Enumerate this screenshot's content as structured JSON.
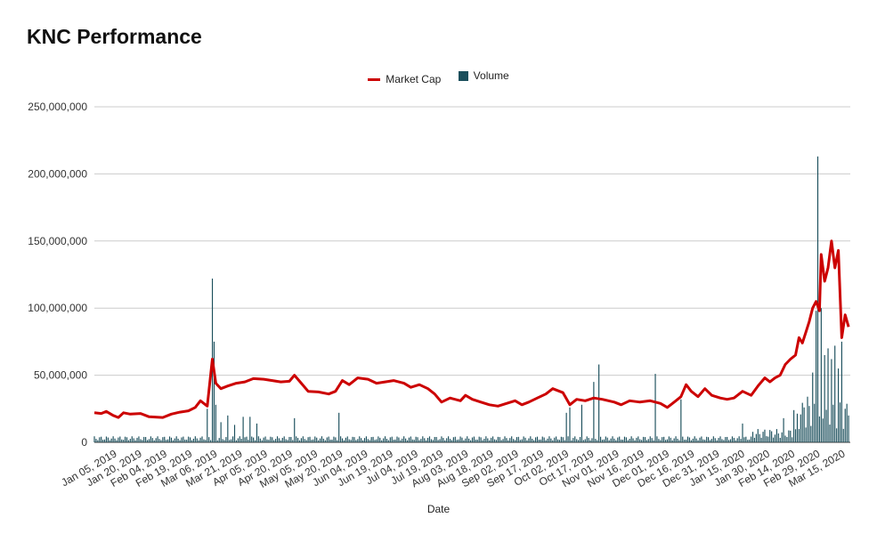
{
  "chart_data": {
    "type": "line+bar",
    "title": "KNC Performance",
    "xlabel": "Date",
    "ylabel": "",
    "ylim": [
      0,
      250000000
    ],
    "y_ticks": [
      0,
      50000000,
      100000000,
      150000000,
      200000000,
      250000000
    ],
    "y_tick_labels": [
      "0",
      "50,000,000",
      "100,000,000",
      "150,000,000",
      "200,000,000",
      "250,000,000"
    ],
    "x_tick_labels": [
      "Jan 05, 2019",
      "Jan 20, 2019",
      "Feb 04, 2019",
      "Feb 19, 2019",
      "Mar 06, 2019",
      "Mar 21, 2019",
      "Apr 05, 2019",
      "Apr 20, 2019",
      "May 05, 2019",
      "May 20, 2019",
      "Jun 04, 2019",
      "Jun 19, 2019",
      "Jul 04, 2019",
      "Jul 19, 2019",
      "Aug 03, 2019",
      "Aug 18, 2019",
      "Sep 02, 2019",
      "Sep 17, 2019",
      "Oct 02, 2019",
      "Oct 17, 2019",
      "Nov 01, 2019",
      "Nov 16, 2019",
      "Dec 01, 2019",
      "Dec 16, 2019",
      "Dec 31, 2019",
      "Jan 15, 2020",
      "Jan 30, 2020",
      "Feb 14, 2020",
      "Feb 29, 2020",
      "Mar 15, 2020"
    ],
    "grid": true,
    "legend_position": "top-center",
    "series": [
      {
        "name": "Market Cap",
        "kind": "line",
        "color": "#cc0000",
        "points": [
          [
            "2019-01-01",
            22000000
          ],
          [
            "2019-01-05",
            21500000
          ],
          [
            "2019-01-08",
            23000000
          ],
          [
            "2019-01-12",
            20000000
          ],
          [
            "2019-01-15",
            18500000
          ],
          [
            "2019-01-18",
            22000000
          ],
          [
            "2019-01-22",
            21000000
          ],
          [
            "2019-01-28",
            21500000
          ],
          [
            "2019-02-02",
            19000000
          ],
          [
            "2019-02-10",
            18500000
          ],
          [
            "2019-02-15",
            21000000
          ],
          [
            "2019-02-20",
            22500000
          ],
          [
            "2019-02-25",
            23500000
          ],
          [
            "2019-03-01",
            26000000
          ],
          [
            "2019-03-04",
            31000000
          ],
          [
            "2019-03-08",
            27000000
          ],
          [
            "2019-03-11",
            62000000
          ],
          [
            "2019-03-13",
            44000000
          ],
          [
            "2019-03-16",
            40000000
          ],
          [
            "2019-03-20",
            42000000
          ],
          [
            "2019-03-25",
            44000000
          ],
          [
            "2019-03-30",
            45000000
          ],
          [
            "2019-04-04",
            47500000
          ],
          [
            "2019-04-10",
            47000000
          ],
          [
            "2019-04-15",
            46000000
          ],
          [
            "2019-04-20",
            45000000
          ],
          [
            "2019-04-25",
            45500000
          ],
          [
            "2019-04-28",
            50000000
          ],
          [
            "2019-05-02",
            44000000
          ],
          [
            "2019-05-06",
            38000000
          ],
          [
            "2019-05-12",
            37500000
          ],
          [
            "2019-05-18",
            36000000
          ],
          [
            "2019-05-22",
            38000000
          ],
          [
            "2019-05-26",
            46000000
          ],
          [
            "2019-05-30",
            43000000
          ],
          [
            "2019-06-04",
            48000000
          ],
          [
            "2019-06-10",
            47000000
          ],
          [
            "2019-06-15",
            44000000
          ],
          [
            "2019-06-20",
            45000000
          ],
          [
            "2019-06-25",
            46000000
          ],
          [
            "2019-07-01",
            44000000
          ],
          [
            "2019-07-05",
            41000000
          ],
          [
            "2019-07-10",
            43000000
          ],
          [
            "2019-07-15",
            40000000
          ],
          [
            "2019-07-19",
            36000000
          ],
          [
            "2019-07-23",
            30000000
          ],
          [
            "2019-07-28",
            33000000
          ],
          [
            "2019-08-03",
            31000000
          ],
          [
            "2019-08-06",
            35000000
          ],
          [
            "2019-08-10",
            32000000
          ],
          [
            "2019-08-15",
            30000000
          ],
          [
            "2019-08-20",
            28000000
          ],
          [
            "2019-08-25",
            27000000
          ],
          [
            "2019-08-30",
            29000000
          ],
          [
            "2019-09-04",
            31000000
          ],
          [
            "2019-09-08",
            28000000
          ],
          [
            "2019-09-12",
            30000000
          ],
          [
            "2019-09-17",
            33000000
          ],
          [
            "2019-09-22",
            36000000
          ],
          [
            "2019-09-26",
            40000000
          ],
          [
            "2019-10-02",
            37000000
          ],
          [
            "2019-10-06",
            28000000
          ],
          [
            "2019-10-10",
            32000000
          ],
          [
            "2019-10-15",
            31000000
          ],
          [
            "2019-10-20",
            33000000
          ],
          [
            "2019-10-25",
            32000000
          ],
          [
            "2019-11-01",
            30000000
          ],
          [
            "2019-11-05",
            28000000
          ],
          [
            "2019-11-10",
            31000000
          ],
          [
            "2019-11-16",
            30000000
          ],
          [
            "2019-11-22",
            31000000
          ],
          [
            "2019-11-28",
            29000000
          ],
          [
            "2019-12-02",
            26000000
          ],
          [
            "2019-12-06",
            30000000
          ],
          [
            "2019-12-10",
            34000000
          ],
          [
            "2019-12-13",
            43000000
          ],
          [
            "2019-12-16",
            38000000
          ],
          [
            "2019-12-20",
            34000000
          ],
          [
            "2019-12-24",
            40000000
          ],
          [
            "2019-12-28",
            35000000
          ],
          [
            "2020-01-02",
            33000000
          ],
          [
            "2020-01-06",
            32000000
          ],
          [
            "2020-01-10",
            33000000
          ],
          [
            "2020-01-15",
            38000000
          ],
          [
            "2020-01-20",
            35000000
          ],
          [
            "2020-01-24",
            42000000
          ],
          [
            "2020-01-28",
            48000000
          ],
          [
            "2020-01-31",
            45000000
          ],
          [
            "2020-02-03",
            48000000
          ],
          [
            "2020-02-06",
            50000000
          ],
          [
            "2020-02-09",
            58000000
          ],
          [
            "2020-02-12",
            62000000
          ],
          [
            "2020-02-15",
            65000000
          ],
          [
            "2020-02-17",
            78000000
          ],
          [
            "2020-02-19",
            74000000
          ],
          [
            "2020-02-21",
            82000000
          ],
          [
            "2020-02-23",
            90000000
          ],
          [
            "2020-02-25",
            100000000
          ],
          [
            "2020-02-27",
            105000000
          ],
          [
            "2020-02-29",
            98000000
          ],
          [
            "2020-03-01",
            140000000
          ],
          [
            "2020-03-03",
            120000000
          ],
          [
            "2020-03-05",
            130000000
          ],
          [
            "2020-03-07",
            150000000
          ],
          [
            "2020-03-09",
            130000000
          ],
          [
            "2020-03-11",
            143000000
          ],
          [
            "2020-03-13",
            78000000
          ],
          [
            "2020-03-15",
            95000000
          ],
          [
            "2020-03-17",
            86000000
          ]
        ]
      },
      {
        "name": "Volume",
        "kind": "bar",
        "color": "#1b4f5c",
        "spikes": [
          [
            "2019-03-11",
            122000000
          ],
          [
            "2019-03-12",
            75000000
          ],
          [
            "2019-03-13",
            28000000
          ],
          [
            "2019-03-08",
            25000000
          ],
          [
            "2019-03-16",
            15000000
          ],
          [
            "2019-03-20",
            20000000
          ],
          [
            "2019-03-24",
            13000000
          ],
          [
            "2019-03-29",
            19000000
          ],
          [
            "2019-04-02",
            19000000
          ],
          [
            "2019-04-06",
            14000000
          ],
          [
            "2019-04-28",
            18000000
          ],
          [
            "2019-05-24",
            22000000
          ],
          [
            "2019-10-04",
            22000000
          ],
          [
            "2019-10-06",
            26000000
          ],
          [
            "2019-10-13",
            28000000
          ],
          [
            "2019-10-20",
            45000000
          ],
          [
            "2019-10-23",
            58000000
          ],
          [
            "2019-11-25",
            51000000
          ],
          [
            "2019-12-10",
            32000000
          ],
          [
            "2020-01-15",
            14000000
          ],
          [
            "2020-02-08",
            18000000
          ],
          [
            "2020-02-14",
            24000000
          ],
          [
            "2020-02-20",
            26000000
          ],
          [
            "2020-02-22",
            34000000
          ],
          [
            "2020-02-25",
            52000000
          ],
          [
            "2020-02-27",
            98000000
          ],
          [
            "2020-02-28",
            213000000
          ],
          [
            "2020-03-01",
            100000000
          ],
          [
            "2020-03-03",
            65000000
          ],
          [
            "2020-03-05",
            70000000
          ],
          [
            "2020-03-07",
            62000000
          ],
          [
            "2020-03-09",
            72000000
          ],
          [
            "2020-03-11",
            55000000
          ],
          [
            "2020-03-13",
            75000000
          ],
          [
            "2020-03-15",
            25000000
          ],
          [
            "2020-03-17",
            20000000
          ]
        ],
        "baseline_level": 3000000
      }
    ]
  }
}
